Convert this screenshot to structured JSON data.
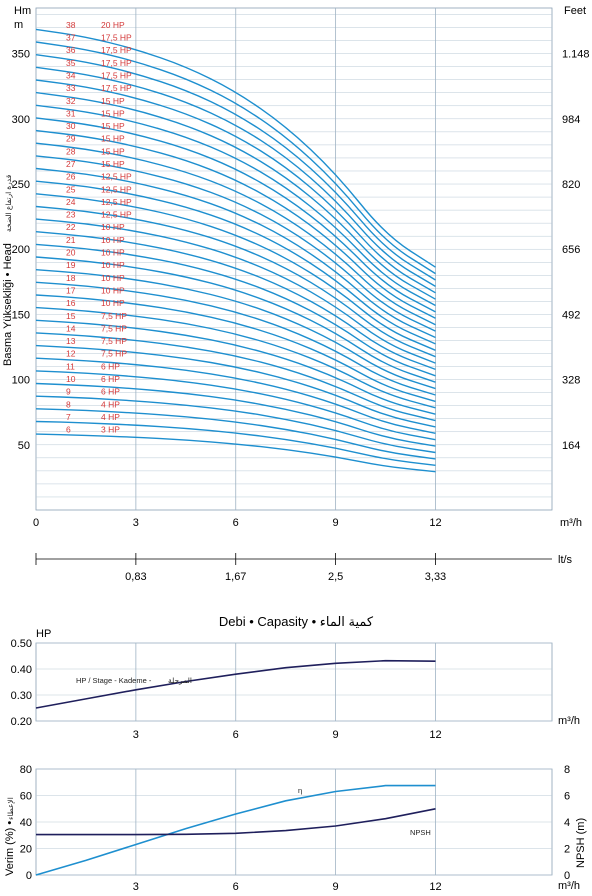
{
  "chart_data": [
    {
      "type": "line",
      "ylabel_left": "Basma Yüksekliği • Head",
      "ylabel_left_arabic": "قدرة ارتفاع الضخة",
      "y_unit_left": "Hm",
      "y_unit_left_sub": "m",
      "y_unit_right": "Feet",
      "x_unit": "m³/h",
      "x2_unit": "lt/s",
      "xlabel": "Debi • Capasity • كمية الماء",
      "xlim": [
        0,
        15.5
      ],
      "ylim": [
        0,
        385
      ],
      "x_ticks": [
        "0",
        "3",
        "6",
        "9",
        "12"
      ],
      "x_tick_values": [
        0,
        3,
        6,
        9,
        12
      ],
      "y_ticks": [
        "0",
        "50",
        "100",
        "150",
        "200",
        "250",
        "300",
        "350"
      ],
      "y_tick_values": [
        0,
        50,
        100,
        150,
        200,
        250,
        300,
        350
      ],
      "right_ticks": [
        "164",
        "328",
        "492",
        "656",
        "820",
        "984",
        "1.148"
      ],
      "right_tick_values": [
        50,
        100,
        150,
        200,
        250,
        300,
        350
      ],
      "x2_ticks": [
        "0,83",
        "1,67",
        "2,5",
        "3,33"
      ],
      "x2_tick_values": [
        3,
        6,
        9,
        12
      ],
      "grid": true,
      "curve_color": "#1e8fcf",
      "stage_color": "#d43a3a",
      "curve_shape_per_stage": {
        "x": [
          0,
          1.5,
          3,
          4.5,
          6,
          7.5,
          9,
          10.5,
          12
        ],
        "head": [
          9.7,
          9.55,
          9.3,
          8.95,
          8.45,
          7.75,
          6.8,
          5.55,
          4.9
        ],
        "note_units": "m per stage"
      },
      "series": [
        {
          "stage": "38",
          "hp": "20 HP"
        },
        {
          "stage": "37",
          "hp": "17,5 HP"
        },
        {
          "stage": "36",
          "hp": "17,5 HP"
        },
        {
          "stage": "35",
          "hp": "17,5 HP"
        },
        {
          "stage": "34",
          "hp": "17,5 HP"
        },
        {
          "stage": "33",
          "hp": "17,5 HP"
        },
        {
          "stage": "32",
          "hp": "15 HP"
        },
        {
          "stage": "31",
          "hp": "15 HP"
        },
        {
          "stage": "30",
          "hp": "15 HP"
        },
        {
          "stage": "29",
          "hp": "15 HP"
        },
        {
          "stage": "28",
          "hp": "15 HP"
        },
        {
          "stage": "27",
          "hp": "15 HP"
        },
        {
          "stage": "26",
          "hp": "12,5 HP"
        },
        {
          "stage": "25",
          "hp": "12,5 HP"
        },
        {
          "stage": "24",
          "hp": "12,5 HP"
        },
        {
          "stage": "23",
          "hp": "12,5 HP"
        },
        {
          "stage": "22",
          "hp": "10 HP"
        },
        {
          "stage": "21",
          "hp": "10 HP"
        },
        {
          "stage": "20",
          "hp": "10 HP"
        },
        {
          "stage": "19",
          "hp": "10 HP"
        },
        {
          "stage": "18",
          "hp": "10 HP"
        },
        {
          "stage": "17",
          "hp": "10 HP"
        },
        {
          "stage": "16",
          "hp": "10 HP"
        },
        {
          "stage": "15",
          "hp": "7,5 HP"
        },
        {
          "stage": "14",
          "hp": "7,5 HP"
        },
        {
          "stage": "13",
          "hp": "7,5 HP"
        },
        {
          "stage": "12",
          "hp": "7,5 HP"
        },
        {
          "stage": "11",
          "hp": "6 HP"
        },
        {
          "stage": "10",
          "hp": "6 HP"
        },
        {
          "stage": "9",
          "hp": "6 HP"
        },
        {
          "stage": "8",
          "hp": "4 HP"
        },
        {
          "stage": "7",
          "hp": "4 HP"
        },
        {
          "stage": "6",
          "hp": "3 HP"
        }
      ]
    },
    {
      "type": "line",
      "ylabel": "HP",
      "x_unit": "m³/h",
      "xlim": [
        0,
        15.5
      ],
      "ylim": [
        0.2,
        0.5
      ],
      "y_ticks": [
        "0.20",
        "0.30",
        "0.40",
        "0.50"
      ],
      "y_tick_values": [
        0.2,
        0.3,
        0.4,
        0.5
      ],
      "x_ticks": [
        "3",
        "6",
        "9",
        "12"
      ],
      "x_tick_values": [
        3,
        6,
        9,
        12
      ],
      "grid": true,
      "series": [
        {
          "name": "HP / Stage - Kademe -",
          "name_arabic": "المرحلة",
          "color": "#1f1f5c",
          "x": [
            0,
            1.5,
            3,
            4.5,
            6,
            7.5,
            9,
            10.5,
            12
          ],
          "y": [
            0.25,
            0.285,
            0.32,
            0.352,
            0.38,
            0.405,
            0.422,
            0.432,
            0.43
          ]
        }
      ]
    },
    {
      "type": "line",
      "ylabel_left": "Verim (%) •",
      "ylabel_left_arabic": "الإعطاء",
      "ylabel_right": "NPSH (m)",
      "x_unit": "m³/h",
      "xlim": [
        0,
        15.5
      ],
      "ylim_left": [
        0,
        80
      ],
      "ylim_right": [
        0,
        8
      ],
      "y_ticks_left": [
        "0",
        "20",
        "40",
        "60",
        "80"
      ],
      "y_tick_values_left": [
        0,
        20,
        40,
        60,
        80
      ],
      "y_ticks_right": [
        "0",
        "2",
        "4",
        "6",
        "8"
      ],
      "y_tick_values_right": [
        0,
        2,
        4,
        6,
        8
      ],
      "x_ticks": [
        "3",
        "6",
        "9",
        "12"
      ],
      "x_tick_values": [
        3,
        6,
        9,
        12
      ],
      "grid": true,
      "series": [
        {
          "name": "η",
          "axis": "left",
          "color": "#1e8fcf",
          "x": [
            0,
            1.5,
            3,
            4.5,
            6,
            7.5,
            9,
            10.5,
            12
          ],
          "y": [
            0,
            11,
            23,
            35,
            46,
            56,
            63,
            67.5,
            67.5
          ]
        },
        {
          "name": "NPSH",
          "axis": "right",
          "color": "#1f1f5c",
          "x": [
            0,
            1.5,
            3,
            4.5,
            6,
            7.5,
            9,
            10.5,
            12
          ],
          "y": [
            3.05,
            3.05,
            3.05,
            3.07,
            3.15,
            3.35,
            3.7,
            4.25,
            5.0
          ]
        }
      ]
    }
  ]
}
